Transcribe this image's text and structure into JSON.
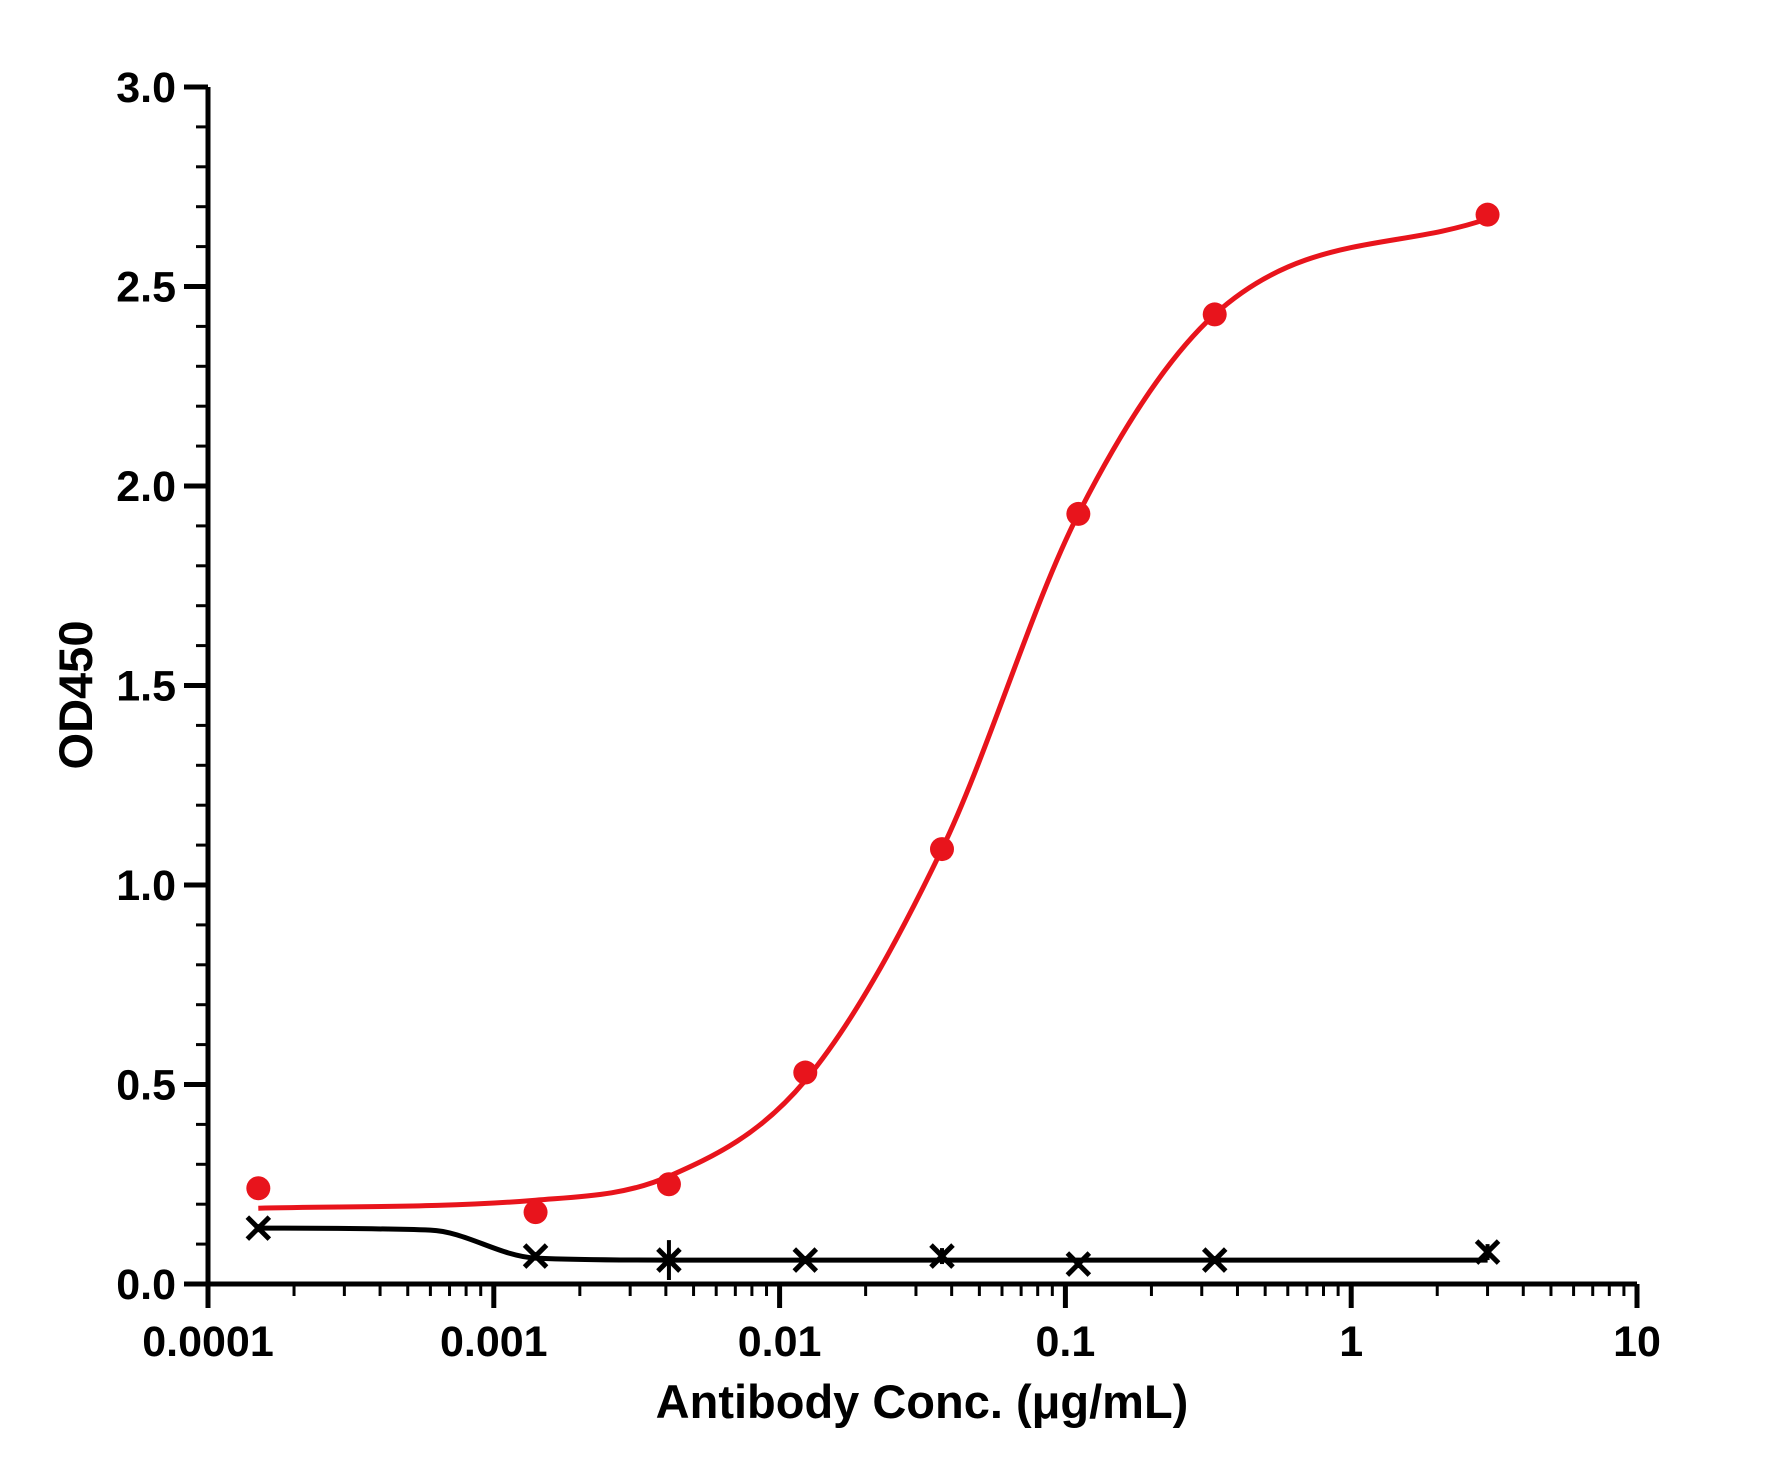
{
  "chart_data": {
    "type": "scatter",
    "xlabel": "Antibody Conc. (μg/mL)",
    "ylabel": "OD450",
    "xscale": "log",
    "xlim": [
      0.0001,
      10
    ],
    "ylim": [
      0,
      3.0
    ],
    "x_ticks": [
      "0.0001",
      "0.001",
      "0.01",
      "0.1",
      "1",
      "10"
    ],
    "y_ticks": [
      "0.0",
      "0.5",
      "1.0",
      "1.5",
      "2.0",
      "2.5",
      "3.0"
    ],
    "grid": false,
    "legend": "none",
    "series": [
      {
        "color": "#e8141c",
        "marker": "circle",
        "fit": "sigmoidal curve",
        "points": [
          {
            "x": 0.00015,
            "y": 0.24
          },
          {
            "x": 0.0014,
            "y": 0.18
          },
          {
            "x": 0.0041,
            "y": 0.25
          },
          {
            "x": 0.0123,
            "y": 0.53
          },
          {
            "x": 0.037,
            "y": 1.09
          },
          {
            "x": 0.111,
            "y": 1.93
          },
          {
            "x": 0.333,
            "y": 2.43
          },
          {
            "x": 3.0,
            "y": 2.68
          }
        ]
      },
      {
        "color": "#000000",
        "marker": "x",
        "fit": "sigmoidal curve",
        "points": [
          {
            "x": 0.00015,
            "y": 0.14,
            "err": 0.01
          },
          {
            "x": 0.0014,
            "y": 0.07,
            "err": 0.01
          },
          {
            "x": 0.0041,
            "y": 0.06,
            "err": 0.05
          },
          {
            "x": 0.0123,
            "y": 0.06,
            "err": 0.01
          },
          {
            "x": 0.037,
            "y": 0.07,
            "err": 0.02
          },
          {
            "x": 0.111,
            "y": 0.05,
            "err": 0.01
          },
          {
            "x": 0.333,
            "y": 0.06,
            "err": 0.01
          },
          {
            "x": 3.0,
            "y": 0.08,
            "err": 0.02
          }
        ]
      }
    ]
  }
}
